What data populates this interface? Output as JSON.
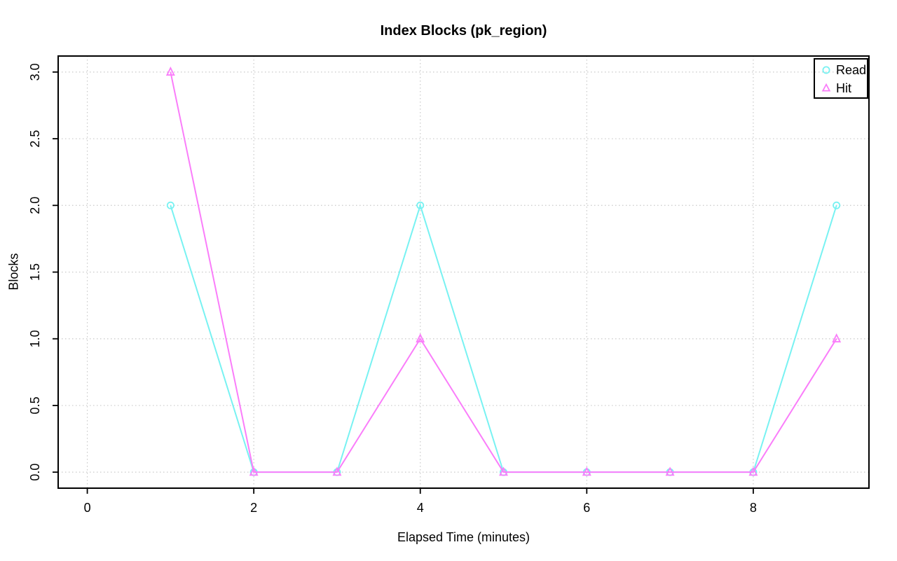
{
  "chart_data": {
    "type": "line",
    "title": "Index Blocks (pk_region)",
    "xlabel": "Elapsed Time (minutes)",
    "ylabel": "Blocks",
    "x": [
      1,
      2,
      3,
      4,
      5,
      6,
      7,
      8,
      9
    ],
    "series": [
      {
        "name": "Read",
        "marker": "circle",
        "color": "#78f2f2",
        "values": [
          2,
          0,
          0,
          2,
          0,
          0,
          0,
          0,
          2
        ]
      },
      {
        "name": "Hit",
        "marker": "triangle",
        "color": "#fa7dfa",
        "values": [
          3,
          0,
          0,
          1,
          0,
          0,
          0,
          0,
          1
        ]
      }
    ],
    "x_ticks": [
      0,
      2,
      4,
      6,
      8
    ],
    "y_ticks": [
      0.0,
      0.5,
      1.0,
      1.5,
      2.0,
      2.5,
      3.0
    ],
    "y_tick_labels": [
      "0.0",
      "0.5",
      "1.0",
      "1.5",
      "2.0",
      "2.5",
      "3.0"
    ],
    "xlim": [
      -0.35,
      9.39
    ],
    "ylim": [
      -0.12,
      3.12
    ],
    "grid": true,
    "grid_style": "dotted",
    "grid_color": "#c9c9c9",
    "axis_color": "#000000",
    "background": "#ffffff",
    "legend_position": "top-right"
  }
}
